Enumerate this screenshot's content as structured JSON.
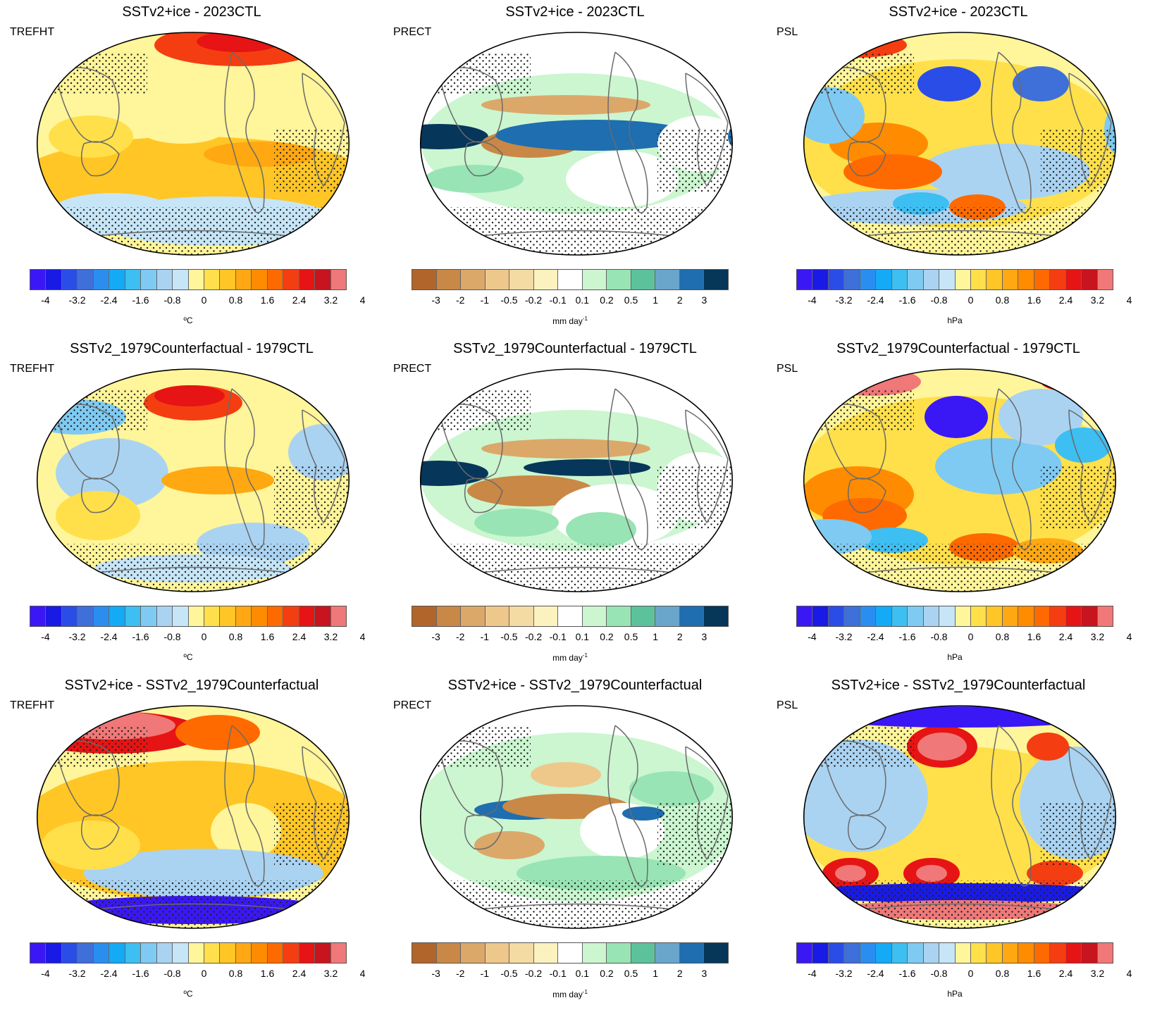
{
  "rows": [
    {
      "title": "SSTv2+ice - 2023CTL"
    },
    {
      "title": "SSTv2_1979Counterfactual - 1979CTL"
    },
    {
      "title": "SSTv2+ice - SSTv2_1979Counterfactual"
    }
  ],
  "columns": [
    {
      "variable": "TREFHT",
      "units": "ºC",
      "units_sup": "",
      "ticks": [
        "-4",
        "-3.2",
        "-2.4",
        "-1.6",
        "-0.8",
        "0",
        "0.8",
        "1.6",
        "2.4",
        "3.2",
        "4"
      ],
      "colors": [
        "#3a17f5",
        "#1a1ae6",
        "#2a4de8",
        "#3f6fd8",
        "#2a8ef0",
        "#14aaf5",
        "#3dbff2",
        "#7fcaf2",
        "#aad3f2",
        "#c6e5f7",
        "#fff59a",
        "#ffe04a",
        "#ffc626",
        "#ffa812",
        "#ff8c00",
        "#ff6a00",
        "#f53d12",
        "#e61414",
        "#c8141e",
        "#f07878"
      ]
    },
    {
      "variable": "PRECT",
      "units": "mm day",
      "units_sup": "-1",
      "ticks": [
        "-3",
        "-2",
        "-1",
        "-0.5",
        "-0.2",
        "-0.1",
        "0.1",
        "0.2",
        "0.5",
        "1",
        "2",
        "3"
      ],
      "colors": [
        "#b2652a",
        "#c98845",
        "#dba86a",
        "#eec88b",
        "#f3dba3",
        "#fbf2c0",
        "#ffffff",
        "#cbf6d0",
        "#98e4b4",
        "#5cc29c",
        "#6aa5cc",
        "#1e6eb0",
        "#06365a"
      ]
    },
    {
      "variable": "PSL",
      "units": "hPa",
      "units_sup": "",
      "ticks": [
        "-4",
        "-3.2",
        "-2.4",
        "-1.6",
        "-0.8",
        "0",
        "0.8",
        "1.6",
        "2.4",
        "3.2",
        "4"
      ],
      "colors": [
        "#3a17f5",
        "#1a1ae6",
        "#2a4de8",
        "#3f6fd8",
        "#2a8ef0",
        "#14aaf5",
        "#3dbff2",
        "#7fcaf2",
        "#aad3f2",
        "#c6e5f7",
        "#fff59a",
        "#ffe04a",
        "#ffc626",
        "#ffa812",
        "#ff8c00",
        "#ff6a00",
        "#f53d12",
        "#e61414",
        "#c8141e",
        "#f07878"
      ]
    }
  ],
  "chart_data": {
    "type": "heatmap",
    "description_grid": "3x3 global map panels (Robinson projection, Pacific-centred) of differences with stippling for non-significance",
    "row_titles": [
      "SSTv2+ice - 2023CTL",
      "SSTv2_1979Counterfactual - 1979CTL",
      "SSTv2+ice - SSTv2_1979Counterfactual"
    ],
    "column_variables": [
      "TREFHT",
      "PRECT",
      "PSL"
    ],
    "column_units": [
      "ºC",
      "mm day-1",
      "hPa"
    ],
    "temperature_levels": [
      -4,
      -3.2,
      -2.4,
      -1.6,
      -0.8,
      0,
      0.8,
      1.6,
      2.4,
      3.2,
      4
    ],
    "precip_levels": [
      -3,
      -2,
      -1,
      -0.5,
      -0.2,
      -0.1,
      0.1,
      0.2,
      0.5,
      1,
      2,
      3
    ],
    "psl_levels": [
      -4,
      -3.2,
      -2.4,
      -1.6,
      -0.8,
      0,
      0.8,
      1.6,
      2.4,
      3.2,
      4
    ]
  }
}
